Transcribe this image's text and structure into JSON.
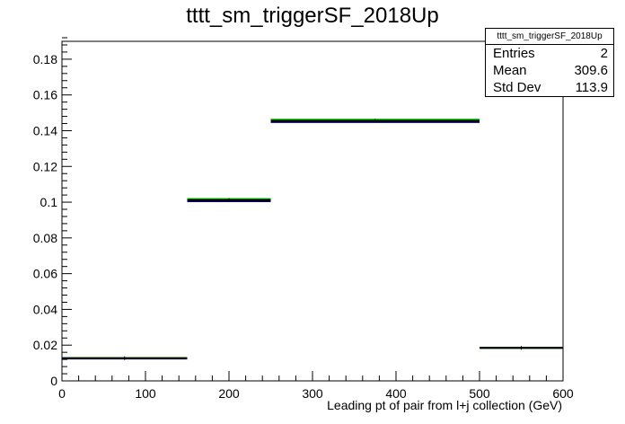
{
  "chart_data": {
    "type": "histogram",
    "title": "tttt_sm_triggerSF_2018Up",
    "xlabel": "Leading pt of pair from l+j collection (GeV)",
    "ylabel": "",
    "xlim": [
      0,
      600
    ],
    "ylim": [
      0,
      0.19
    ],
    "xticks": [
      0,
      100,
      200,
      300,
      400,
      500,
      600
    ],
    "yticks": [
      0,
      0.02,
      0.04,
      0.06,
      0.08,
      0.1,
      0.12,
      0.14,
      0.16,
      0.18
    ],
    "bin_edges": [
      0,
      150,
      250,
      500,
      600
    ],
    "series": [
      {
        "values": [
          0.0125,
          0.1005,
          0.1448,
          0.0185
        ],
        "color": "#00008b"
      },
      {
        "values": [
          0.0128,
          0.1018,
          0.1462,
          0.0185
        ],
        "color": "#00cc00"
      },
      {
        "values": [
          0.0127,
          0.1012,
          0.1455,
          0.0185
        ],
        "color": "#000000"
      }
    ],
    "grid": false
  },
  "stats": {
    "name": "tttt_sm_triggerSF_2018Up",
    "rows": [
      {
        "label": "Entries",
        "value": "2"
      },
      {
        "label": "Mean",
        "value": "309.6"
      },
      {
        "label": "Std Dev",
        "value": "113.9"
      }
    ]
  }
}
